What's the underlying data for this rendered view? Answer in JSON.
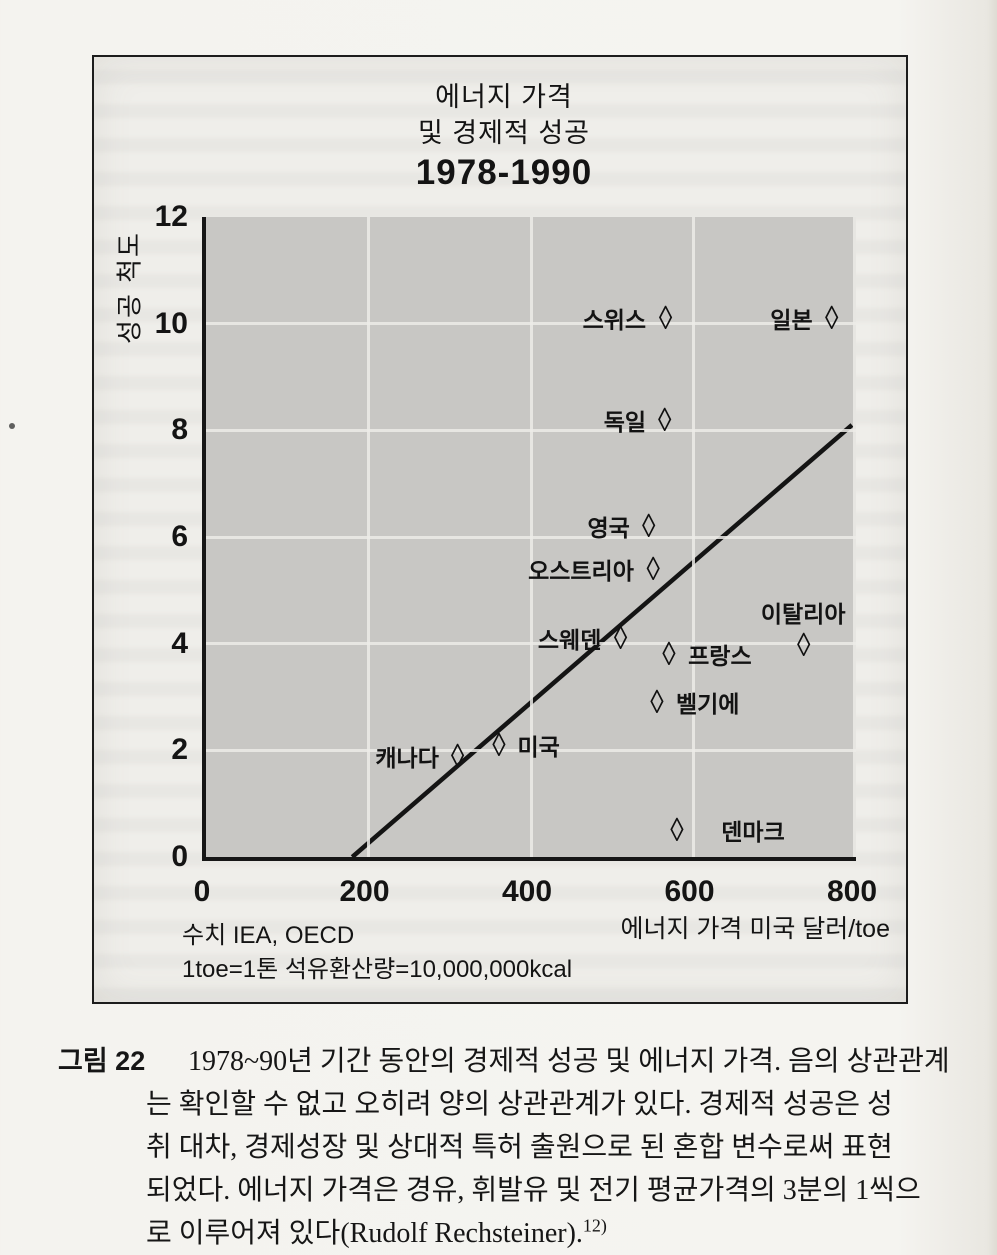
{
  "figure": {
    "title_lines": [
      "에너지 가격",
      "및 경제적 성공",
      "1978-1990"
    ],
    "y_axis_label": "성공 척도",
    "x_axis_label": "에너지 가격 미국 달러/toe",
    "notes": [
      "수치 IEA, OECD",
      "1toe=1톤 석유환산량=10,000,000kcal"
    ]
  },
  "chart_data": {
    "type": "scatter",
    "title": "에너지 가격 및 경제적 성공 1978-1990",
    "xlabel": "에너지 가격 미국 달러/toe",
    "ylabel": "성공 척도",
    "xlim": [
      0,
      800
    ],
    "ylim": [
      0,
      12
    ],
    "x_ticks": [
      0,
      200,
      400,
      600,
      800
    ],
    "y_ticks": [
      12,
      10,
      8,
      6,
      4,
      2,
      0
    ],
    "grid": true,
    "marker": "open-diamond",
    "plot_bg_color": "#c8c7c4",
    "points": [
      {
        "label": "캐나다",
        "x": 310,
        "y": 1.9,
        "side": "left"
      },
      {
        "label": "미국",
        "x": 360,
        "y": 2.1,
        "side": "right"
      },
      {
        "label": "스웨덴",
        "x": 510,
        "y": 4.1,
        "side": "left"
      },
      {
        "label": "오스트리아",
        "x": 550,
        "y": 5.4,
        "side": "left"
      },
      {
        "label": "영국",
        "x": 545,
        "y": 6.2,
        "side": "left"
      },
      {
        "label": "독일",
        "x": 565,
        "y": 8.2,
        "side": "left"
      },
      {
        "label": "스위스",
        "x": 565,
        "y": 10.1,
        "side": "left"
      },
      {
        "label": "일본",
        "x": 770,
        "y": 10.1,
        "side": "left"
      },
      {
        "label": "프랑스",
        "x": 570,
        "y": 3.8,
        "side": "right"
      },
      {
        "label": "벨기에",
        "x": 555,
        "y": 2.9,
        "side": "right"
      },
      {
        "label": "덴마크",
        "x": 580,
        "y": 0.5,
        "side": "right-gap"
      },
      {
        "label": "이탈리아",
        "x": 735,
        "y": 4.0,
        "side": "above"
      }
    ],
    "trend_line": {
      "from": [
        180,
        0
      ],
      "to": [
        795,
        8.1
      ]
    }
  },
  "caption": {
    "label": "그림 22",
    "lines": [
      "1978~90년 기간 동안의 경제적 성공 및 에너지 가격. 음의 상관관계",
      "는 확인할 수 없고 오히려 양의 상관관계가 있다. 경제적 성공은 성",
      "취 대차, 경제성장 및 상대적 특허 출원으로 된 혼합 변수로써 표현",
      "되었다. 에너지 가격은 경유, 휘발유 및 전기 평균가격의 3분의 1씩으",
      "로 이루어져 있다(Rudolf Rechsteiner)."
    ],
    "footnote_ref": "12)"
  }
}
